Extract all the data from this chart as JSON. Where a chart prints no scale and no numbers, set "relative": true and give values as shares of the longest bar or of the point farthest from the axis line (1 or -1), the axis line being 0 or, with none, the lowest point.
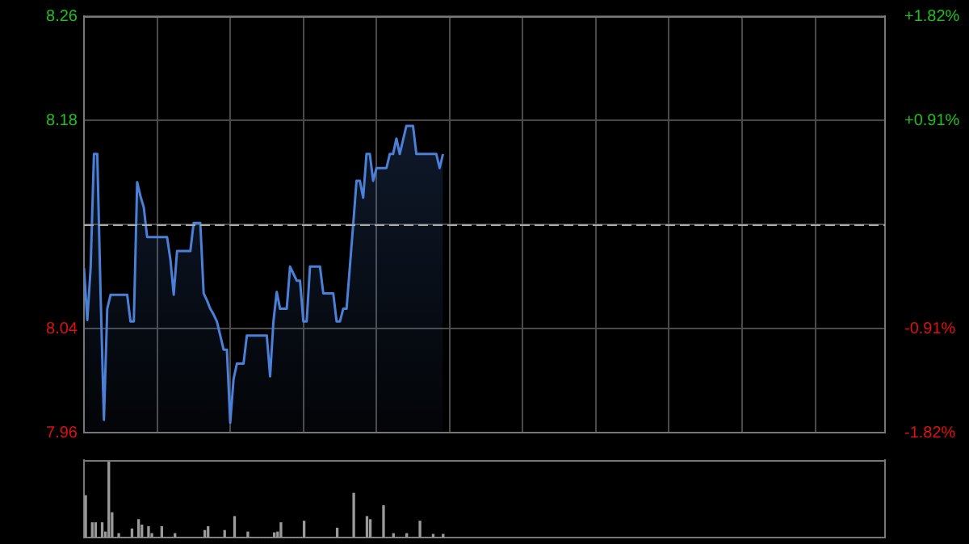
{
  "chart_data": [
    {
      "type": "area",
      "categories": [
        null,
        null,
        null,
        null,
        null,
        null,
        null,
        null,
        null,
        null,
        null,
        null,
        null,
        null,
        null,
        null,
        null,
        null,
        null,
        null,
        null,
        null,
        null,
        null,
        null,
        null,
        null,
        null,
        null,
        null,
        null,
        null,
        null,
        null,
        null,
        null,
        null,
        null,
        null,
        null,
        null,
        null,
        null,
        null,
        null,
        null,
        null,
        null,
        null,
        null,
        null,
        null,
        null,
        null,
        null,
        null,
        null,
        null,
        null,
        null,
        null,
        null,
        null,
        null,
        null,
        null,
        null,
        null,
        null,
        null,
        null,
        null,
        null,
        null,
        null,
        null,
        null,
        null,
        null,
        null,
        null,
        null,
        null,
        null,
        null,
        null,
        null,
        null,
        null,
        null,
        null,
        null,
        null,
        null,
        null,
        null,
        null,
        null,
        null,
        null,
        null,
        null,
        null,
        null,
        null,
        null,
        null,
        null,
        null,
        null,
        null,
        null,
        null,
        null,
        null,
        null,
        null,
        null,
        null,
        null,
        null,
        null,
        null,
        null,
        null,
        null,
        null,
        null,
        null,
        null,
        null,
        null,
        null,
        null,
        null,
        null,
        null,
        null,
        null,
        null,
        null,
        null,
        null,
        null,
        null,
        null,
        null,
        null,
        null,
        null,
        null,
        null,
        null,
        null,
        null,
        null,
        null,
        null,
        null,
        null,
        null,
        null,
        null,
        null,
        null,
        null,
        null,
        null,
        null,
        null,
        null,
        null,
        null,
        null,
        null,
        null,
        null,
        null,
        null,
        null,
        null,
        null,
        null,
        null,
        null,
        null,
        null,
        null,
        null,
        null,
        null,
        null,
        null,
        null,
        null,
        null,
        null,
        null,
        null,
        null,
        null,
        null,
        null,
        null,
        null,
        null,
        null,
        null,
        null,
        null,
        null,
        null,
        null,
        null,
        null,
        null,
        null,
        null,
        null,
        null,
        null,
        null,
        null,
        null,
        null,
        null,
        null,
        null,
        null,
        null,
        null,
        null,
        null,
        null,
        null,
        null,
        null,
        null,
        null,
        null,
        null,
        null
      ],
      "series": [
        {
          "color": "#4a80d8",
          "values": [
            8.079,
            8.042,
            8.079,
            8.16,
            8.16,
            8.06,
            7.971,
            8.05,
            8.06,
            8.06,
            8.06,
            8.06,
            8.06,
            8.06,
            8.041,
            8.041,
            8.14,
            8.13,
            8.122,
            8.101,
            8.101,
            8.101,
            8.101,
            8.101,
            8.101,
            8.101,
            8.085,
            8.06,
            8.091,
            8.091,
            8.091,
            8.091,
            8.091,
            8.111,
            8.111,
            8.111,
            8.061,
            8.056,
            8.05,
            8.046,
            8.041,
            8.031,
            8.021,
            8.021,
            7.969,
            8.0,
            8.011,
            8.011,
            8.011,
            8.031,
            8.031,
            8.031,
            8.031,
            8.031,
            8.031,
            8.031,
            8.002,
            8.041,
            8.062,
            8.05,
            8.05,
            8.05,
            8.08,
            8.075,
            8.07,
            8.07,
            8.041,
            8.041,
            8.08,
            8.08,
            8.08,
            8.08,
            8.061,
            8.061,
            8.061,
            8.061,
            8.041,
            8.041,
            8.05,
            8.05,
            8.08,
            8.11,
            8.141,
            8.141,
            8.129,
            8.16,
            8.16,
            8.141,
            8.15,
            8.15,
            8.15,
            8.15,
            8.16,
            8.16,
            8.171,
            8.16,
            8.17,
            8.18,
            8.18,
            8.18,
            8.16,
            8.16,
            8.16,
            8.16,
            8.16,
            8.16,
            8.16,
            8.15,
            8.16,
            null,
            null,
            null,
            null,
            null,
            null,
            null,
            null,
            null,
            null,
            null,
            null,
            null,
            null,
            null,
            null,
            null,
            null,
            null,
            null,
            null,
            null,
            null,
            null,
            null,
            null,
            null,
            null,
            null,
            null,
            null,
            null,
            null,
            null,
            null,
            null,
            null,
            null,
            null,
            null,
            null,
            null,
            null,
            null,
            null,
            null,
            null,
            null,
            null,
            null,
            null,
            null,
            null,
            null,
            null,
            null,
            null,
            null,
            null,
            null,
            null,
            null,
            null,
            null,
            null,
            null,
            null,
            null,
            null,
            null,
            null,
            null,
            null,
            null,
            null,
            null,
            null,
            null,
            null,
            null,
            null,
            null,
            null,
            null,
            null,
            null,
            null,
            null,
            null,
            null,
            null,
            null,
            null,
            null,
            null,
            null,
            null,
            null,
            null,
            null,
            null,
            null,
            null,
            null,
            null,
            null,
            null,
            null,
            null,
            null,
            null,
            null,
            null,
            null,
            null,
            null,
            null,
            null,
            null,
            null,
            null,
            null,
            null,
            null,
            null,
            null,
            null,
            null,
            null,
            null,
            null,
            null,
            null
          ]
        }
      ],
      "ylim": [
        7.962,
        8.258
      ],
      "yticks": [
        {
          "value": 7.962,
          "label": "7.96"
        },
        {
          "value": 8.036,
          "label": "8.04"
        },
        {
          "value": 8.11,
          "label": null
        },
        {
          "value": 8.184,
          "label": "8.18"
        },
        {
          "value": 8.258,
          "label": "8.26"
        }
      ],
      "y2lim": [
        -1.82,
        1.82
      ],
      "y2ticks": [
        {
          "value": -1.82,
          "label": "-1.82%"
        },
        {
          "value": -0.91,
          "label": "-0.91%"
        },
        {
          "value": 0,
          "label": null
        },
        {
          "value": 0.91,
          "label": "+0.91%"
        },
        {
          "value": 1.82,
          "label": "+1.82%"
        }
      ],
      "ref_lines": [
        {
          "axis": "y",
          "value": 8.11,
          "color": "#aaaaaa",
          "line_style": "dashed"
        }
      ],
      "grid": true,
      "tick_labels": "y",
      "marker": "none",
      "line_style": "solid"
    },
    {
      "type": "bar",
      "relative": true,
      "tick_labels": false,
      "categories": [
        null,
        null,
        null,
        null,
        null,
        null,
        null,
        null,
        null,
        null,
        null,
        null,
        null,
        null,
        null,
        null,
        null,
        null,
        null,
        null,
        null,
        null,
        null,
        null,
        null,
        null,
        null,
        null,
        null,
        null,
        null,
        null,
        null,
        null,
        null,
        null,
        null,
        null,
        null,
        null,
        null,
        null,
        null,
        null,
        null,
        null,
        null,
        null,
        null,
        null,
        null,
        null,
        null,
        null,
        null,
        null,
        null,
        null,
        null,
        null,
        null,
        null,
        null,
        null,
        null,
        null,
        null,
        null,
        null,
        null,
        null,
        null,
        null,
        null,
        null,
        null,
        null,
        null,
        null,
        null,
        null,
        null,
        null,
        null,
        null,
        null,
        null,
        null,
        null,
        null,
        null,
        null,
        null,
        null,
        null,
        null,
        null,
        null,
        null,
        null,
        null,
        null,
        null,
        null,
        null,
        null,
        null,
        null,
        null,
        null,
        null,
        null,
        null,
        null,
        null,
        null,
        null,
        null,
        null,
        null,
        null,
        null,
        null,
        null,
        null,
        null,
        null,
        null,
        null,
        null,
        null,
        null,
        null,
        null,
        null,
        null,
        null,
        null,
        null,
        null,
        null,
        null,
        null,
        null,
        null,
        null,
        null,
        null,
        null,
        null,
        null,
        null,
        null,
        null,
        null,
        null,
        null,
        null,
        null,
        null,
        null,
        null,
        null,
        null,
        null,
        null,
        null,
        null,
        null,
        null,
        null,
        null,
        null,
        null,
        null,
        null,
        null,
        null,
        null,
        null,
        null,
        null,
        null,
        null,
        null,
        null,
        null,
        null,
        null,
        null,
        null,
        null,
        null,
        null,
        null,
        null,
        null,
        null,
        null,
        null,
        null,
        null,
        null,
        null,
        null,
        null,
        null,
        null,
        null,
        null,
        null,
        null,
        null,
        null,
        null,
        null,
        null,
        null,
        null,
        null,
        null,
        null,
        null,
        null,
        null,
        null,
        null,
        null,
        null,
        null,
        null,
        null,
        null,
        null,
        null,
        null,
        null,
        null,
        null,
        null,
        null,
        null
      ],
      "series": [
        {
          "color": "#9a9a9a",
          "values": [
            0.54,
            0,
            0.19,
            0.19,
            0,
            0.19,
            0.07,
            1,
            0.32,
            0,
            0.05,
            0,
            0,
            0,
            0.11,
            0,
            0.23,
            0.16,
            0,
            0.14,
            0.05,
            0,
            0,
            0.14,
            0,
            0,
            0,
            0.05,
            0,
            0,
            0,
            0,
            0,
            0,
            0,
            0,
            0.09,
            0.14,
            0,
            0,
            0,
            0,
            0.09,
            0,
            0,
            0.27,
            0,
            0,
            0,
            0.07,
            0,
            0,
            0,
            0,
            0,
            0,
            0,
            0.06,
            0.07,
            0.19,
            0,
            0,
            0,
            0,
            0,
            0,
            0.21,
            0,
            0,
            0,
            0,
            0,
            0,
            0,
            0,
            0,
            0.12,
            0,
            0,
            0,
            0,
            0.57,
            0,
            0,
            0,
            0.27,
            0.23,
            0,
            0,
            0,
            0.41,
            0,
            0,
            0.05,
            0,
            0,
            0,
            0.05,
            0,
            0,
            0,
            0.21,
            0,
            0,
            0,
            0.04,
            0,
            0,
            0.04,
            null,
            null,
            null,
            null,
            null,
            null,
            null,
            null,
            null,
            null,
            null,
            null,
            null,
            null,
            null,
            null,
            null,
            null,
            null,
            null,
            null,
            null,
            null,
            null,
            null,
            null,
            null,
            null,
            null,
            null,
            null,
            null,
            null,
            null,
            null,
            null,
            null,
            null,
            null,
            null,
            null,
            null,
            null,
            null,
            null,
            null,
            null,
            null,
            null,
            null,
            null,
            null,
            null,
            null,
            null,
            null,
            null,
            null,
            null,
            null,
            null,
            null,
            null,
            null,
            null,
            null,
            null,
            null,
            null,
            null,
            null,
            null,
            null,
            null,
            null,
            null,
            null,
            null,
            null,
            null,
            null,
            null,
            null,
            null,
            null,
            null,
            null,
            null,
            null,
            null,
            null,
            null,
            null,
            null,
            null,
            null,
            null,
            null,
            null,
            null,
            null,
            null,
            null,
            null,
            null,
            null,
            null,
            null,
            null,
            null,
            null,
            null,
            null,
            null,
            null,
            null,
            null,
            null,
            null,
            null,
            null,
            null,
            null,
            null,
            null,
            null,
            null,
            null,
            null,
            null,
            null,
            null,
            null
          ]
        }
      ]
    }
  ]
}
